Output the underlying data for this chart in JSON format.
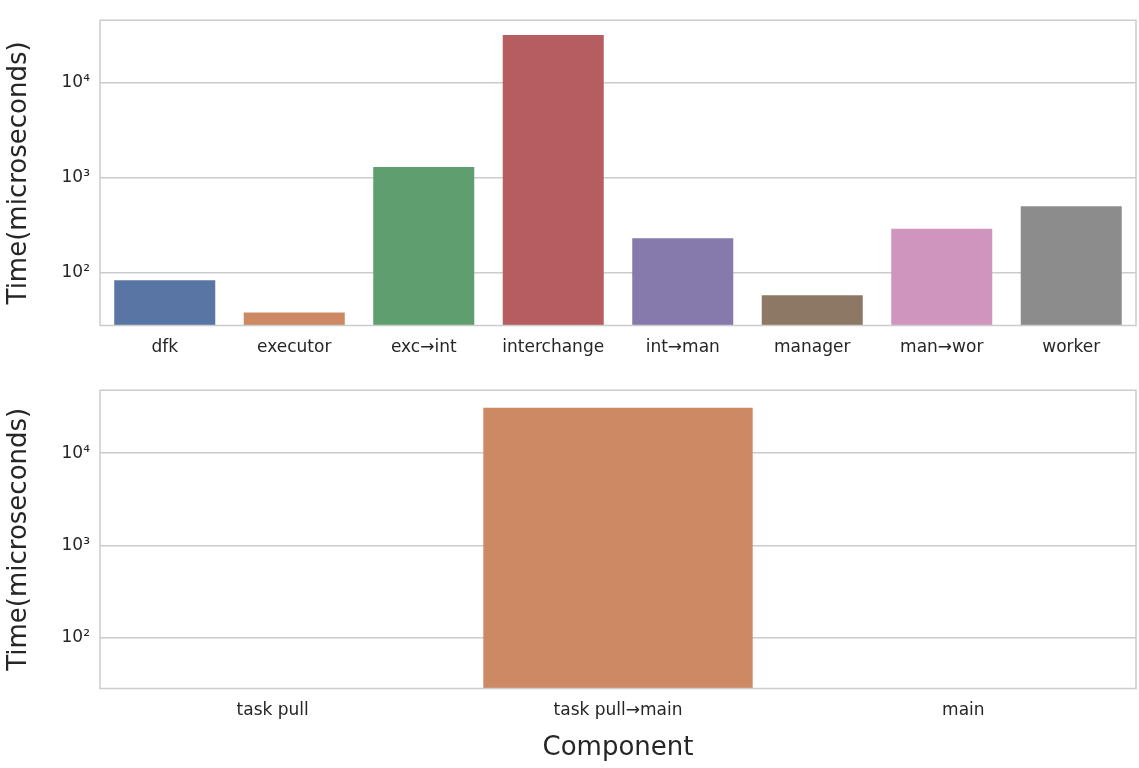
{
  "chart_data": [
    {
      "type": "bar",
      "ylabel": "Time(microseconds)",
      "categories": [
        "dfk",
        "executor",
        "exc→int",
        "interchange",
        "int→man",
        "manager",
        "man→wor",
        "worker"
      ],
      "values": [
        83,
        38,
        1300,
        32000,
        230,
        58,
        290,
        500
      ],
      "colors": [
        "#5975a4",
        "#cc8963",
        "#5f9e6e",
        "#b55d60",
        "#857aab",
        "#8d7866",
        "#d095bf",
        "#8c8c8c"
      ],
      "log": "y",
      "ylim": [
        27.7,
        45700
      ],
      "yticks": [
        {
          "value": 100,
          "label": "10²"
        },
        {
          "value": 1000,
          "label": "10³"
        },
        {
          "value": 10000,
          "label": "10⁴"
        }
      ],
      "grid": "y"
    },
    {
      "type": "bar",
      "ylabel": "Time(microseconds)",
      "xlabel": "Component",
      "categories": [
        "task pull",
        "task pull→main",
        "main"
      ],
      "values": [
        null,
        31000,
        null
      ],
      "color": "#cc8963",
      "log": "y",
      "ylim": [
        28.4,
        48000
      ],
      "yticks": [
        {
          "value": 100,
          "label": "10²"
        },
        {
          "value": 1000,
          "label": "10³"
        },
        {
          "value": 10000,
          "label": "10⁴"
        }
      ],
      "grid": "y"
    }
  ]
}
